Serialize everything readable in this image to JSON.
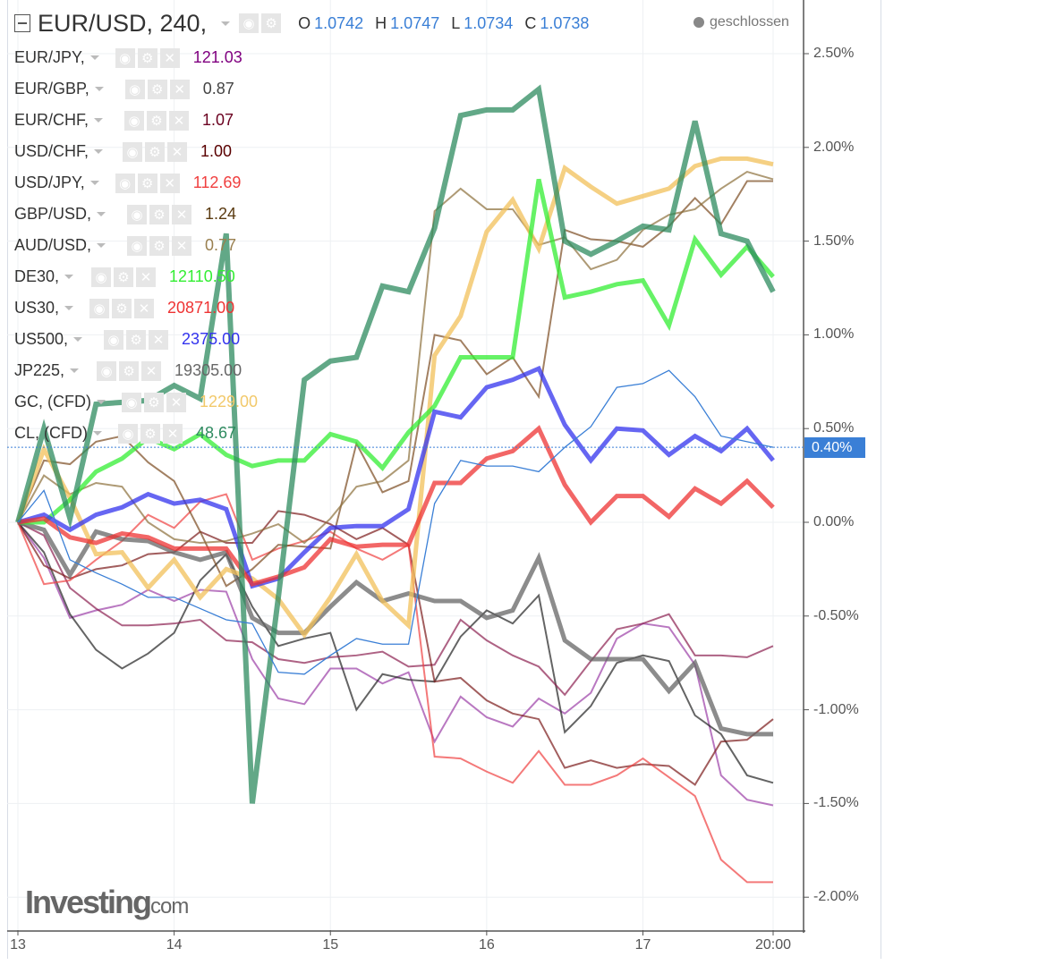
{
  "header": {
    "symbol": "EUR/USD, 240,",
    "o_label": "O",
    "o": "1.0742",
    "h_label": "H",
    "h": "1.0747",
    "l_label": "L",
    "l": "1.0734",
    "c_label": "C",
    "c": "1.0738",
    "status": "geschlossen"
  },
  "watermark": {
    "brand": "Investing",
    "suffix": ".com"
  },
  "current_badge": "0.40%",
  "chart_data": {
    "type": "line",
    "title": "EUR/USD, 240",
    "y_ticks": [
      "2.50%",
      "2.00%",
      "1.50%",
      "1.00%",
      "0.50%",
      "0.00%",
      "-0.50%",
      "-1.00%",
      "-1.50%",
      "-2.00%"
    ],
    "y_tick_values": [
      2.5,
      2.0,
      1.5,
      1.0,
      0.5,
      0,
      -0.5,
      -1.0,
      -1.5,
      -2.0
    ],
    "ylim": [
      -2.18,
      2.79
    ],
    "x_ticks": [
      {
        "label": "13",
        "bar": 0
      },
      {
        "label": "14",
        "bar": 6
      },
      {
        "label": "15",
        "bar": 12
      },
      {
        "label": "16",
        "bar": 18
      },
      {
        "label": "17",
        "bar": 24
      },
      {
        "label": "20:00",
        "bar": 29
      }
    ],
    "xlim": [
      0,
      29
    ],
    "grid": true,
    "units": "percent change",
    "main_series": {
      "name": "EUR/USD",
      "color": "#3a7fd6",
      "current": 0.4,
      "values": [
        0,
        0.17,
        -0.2,
        -0.27,
        -0.33,
        -0.4,
        -0.4,
        -0.46,
        -0.52,
        -0.54,
        -0.8,
        -0.81,
        -0.71,
        -0.62,
        -0.65,
        -0.65,
        0.1,
        0.33,
        0.3,
        0.3,
        0.27,
        0.4,
        0.51,
        0.72,
        0.74,
        0.81,
        0.67,
        0.46,
        0.43,
        0.4
      ]
    },
    "series": [
      {
        "name": "EUR/JPY,",
        "last_value": "121.03",
        "text_color": "#800080",
        "color": "#9b3fa6",
        "width": 2,
        "values": [
          0,
          -0.19,
          -0.51,
          -0.47,
          -0.44,
          -0.36,
          -0.42,
          -0.36,
          -0.37,
          -0.73,
          -0.94,
          -0.97,
          -0.78,
          -0.78,
          -0.86,
          -0.8,
          -1.17,
          -0.93,
          -1.04,
          -1.09,
          -0.94,
          -1.02,
          -0.91,
          -0.62,
          -0.54,
          -0.56,
          -0.76,
          -1.35,
          -1.48,
          -1.51
        ]
      },
      {
        "name": "EUR/GBP,",
        "last_value": "0.87",
        "text_color": "#444444",
        "color": "#222222",
        "width": 2,
        "values": [
          0,
          -0.16,
          -0.49,
          -0.68,
          -0.78,
          -0.7,
          -0.59,
          -0.31,
          -0.17,
          -0.45,
          -0.66,
          -0.62,
          -0.59,
          -1.0,
          -0.81,
          -0.84,
          -0.85,
          -0.61,
          -0.47,
          -0.54,
          -0.39,
          -1.12,
          -0.98,
          -0.75,
          -0.71,
          -0.74,
          -1.03,
          -1.13,
          -1.35,
          -1.39
        ]
      },
      {
        "name": "EUR/CHF,",
        "last_value": "1.07",
        "text_color": "#6b0020",
        "color": "#8b2050",
        "width": 2,
        "values": [
          0,
          -0.07,
          -0.35,
          -0.46,
          -0.55,
          -0.55,
          -0.54,
          -0.52,
          -0.63,
          -0.64,
          -0.73,
          -0.75,
          -0.72,
          -0.71,
          -0.69,
          -0.77,
          -0.76,
          -0.52,
          -0.63,
          -0.71,
          -0.77,
          -0.92,
          -0.74,
          -0.57,
          -0.54,
          -0.49,
          -0.71,
          -0.71,
          -0.72,
          -0.66
        ]
      },
      {
        "name": "USD/CHF,",
        "last_value": "1.00",
        "text_color": "#5a0000",
        "color": "#7a1a1a",
        "width": 2,
        "values": [
          0,
          -0.23,
          -0.3,
          -0.25,
          -0.23,
          -0.17,
          -0.16,
          -0.05,
          -0.11,
          -0.11,
          0.06,
          0.04,
          -0.01,
          -0.09,
          -0.03,
          -0.12,
          -0.85,
          -0.83,
          -0.95,
          -1.02,
          -1.05,
          -1.31,
          -1.27,
          -1.31,
          -1.29,
          -1.3,
          -1.4,
          -1.17,
          -1.16,
          -1.05
        ]
      },
      {
        "name": "USD/JPY,",
        "last_value": "112.69",
        "text_color": "#f04040",
        "color": "#f04040",
        "width": 2,
        "values": [
          0,
          -0.33,
          -0.31,
          -0.2,
          -0.1,
          0.04,
          -0.03,
          0.11,
          0.15,
          -0.2,
          -0.14,
          -0.1,
          -0.05,
          -0.14,
          -0.2,
          -0.12,
          -1.25,
          -1.26,
          -1.33,
          -1.39,
          -1.22,
          -1.4,
          -1.4,
          -1.35,
          -1.26,
          -1.36,
          -1.46,
          -1.8,
          -1.92,
          -1.92
        ]
      },
      {
        "name": "GBP/USD,",
        "last_value": "1.24",
        "text_color": "#5a3a10",
        "color": "#7a4a20",
        "width": 2,
        "values": [
          0,
          0.33,
          0.31,
          0.43,
          0.46,
          0.32,
          0.22,
          -0.05,
          -0.34,
          -0.25,
          -0.12,
          -0.13,
          -0.14,
          0.42,
          0.16,
          0.22,
          1.0,
          0.97,
          0.79,
          0.88,
          0.67,
          1.56,
          1.51,
          1.5,
          1.47,
          1.58,
          1.73,
          1.59,
          1.82,
          1.82
        ]
      },
      {
        "name": "AUD/USD,",
        "last_value": "0.77",
        "text_color": "#9a8050",
        "color": "#8b6f3a",
        "width": 2,
        "values": [
          0,
          0.25,
          0.15,
          0.21,
          0.19,
          0.0,
          -0.09,
          -0.11,
          -0.1,
          -0.06,
          -0.01,
          -0.11,
          0.02,
          0.19,
          0.22,
          0.33,
          1.66,
          1.78,
          1.67,
          1.67,
          1.48,
          1.52,
          1.35,
          1.4,
          1.56,
          1.64,
          1.67,
          1.78,
          1.87,
          1.83
        ]
      },
      {
        "name": "DE30,",
        "last_value": "12110.50",
        "text_color": "#33ee33",
        "color": "#33ee33",
        "width": 5,
        "values": [
          0,
          0,
          0.12,
          0.27,
          0.34,
          0.45,
          0.39,
          0.47,
          0.36,
          0.3,
          0.33,
          0.33,
          0.47,
          0.43,
          0.29,
          0.48,
          0.62,
          0.88,
          0.88,
          0.88,
          1.83,
          1.2,
          1.23,
          1.27,
          1.29,
          1.05,
          1.51,
          1.32,
          1.47,
          1.31
        ]
      },
      {
        "name": "US30,",
        "last_value": "20871.00",
        "text_color": "#ee3333",
        "color": "#ee3333",
        "width": 5,
        "values": [
          0,
          0.02,
          -0.08,
          -0.11,
          -0.06,
          -0.08,
          -0.14,
          -0.14,
          -0.14,
          -0.33,
          -0.29,
          -0.24,
          -0.09,
          -0.13,
          -0.12,
          -0.12,
          0.21,
          0.21,
          0.34,
          0.38,
          0.5,
          0.2,
          0.0,
          0.14,
          0.14,
          0.03,
          0.18,
          0.1,
          0.22,
          0.08
        ]
      },
      {
        "name": "US500,",
        "last_value": "2375.00",
        "text_color": "#3333ee",
        "color": "#3333ee",
        "width": 5,
        "values": [
          0,
          0.04,
          -0.04,
          0.04,
          0.08,
          0.15,
          0.1,
          0.12,
          0.07,
          -0.34,
          -0.3,
          -0.16,
          -0.03,
          -0.02,
          -0.02,
          0.07,
          0.59,
          0.56,
          0.72,
          0.76,
          0.82,
          0.52,
          0.33,
          0.5,
          0.49,
          0.36,
          0.46,
          0.38,
          0.5,
          0.33
        ]
      },
      {
        "name": "JP225,",
        "last_value": "19305.00",
        "text_color": "#666666",
        "color": "#666666",
        "width": 5,
        "values": [
          0,
          -0.04,
          -0.28,
          -0.05,
          -0.09,
          -0.1,
          -0.16,
          -0.2,
          -0.16,
          -0.51,
          -0.59,
          -0.59,
          -0.45,
          -0.32,
          -0.42,
          -0.38,
          -0.42,
          -0.42,
          -0.51,
          -0.47,
          -0.19,
          -0.63,
          -0.73,
          -0.73,
          -0.73,
          -0.9,
          -0.75,
          -1.1,
          -1.13,
          -1.13
        ]
      },
      {
        "name": "GC, (CFD)",
        "last_value": "1229.00",
        "text_color": "#f2c96b",
        "color": "#f2c05a",
        "width": 5,
        "values": [
          0,
          0.39,
          0.13,
          -0.17,
          -0.16,
          -0.35,
          -0.2,
          -0.4,
          -0.25,
          -0.3,
          -0.41,
          -0.6,
          -0.4,
          -0.17,
          -0.42,
          -0.55,
          0.89,
          1.1,
          1.55,
          1.72,
          1.46,
          1.89,
          1.79,
          1.7,
          1.74,
          1.78,
          1.9,
          1.94,
          1.94,
          1.91
        ]
      },
      {
        "name": "CL, (CFD)",
        "last_value": "48.67",
        "text_color": "#2e8b5f",
        "color": "#2e8b5f",
        "width": 6,
        "values": [
          0,
          0.5,
          0.02,
          0.63,
          0.64,
          0.65,
          0.73,
          0.66,
          1.54,
          -1.5,
          -0.4,
          0.76,
          0.86,
          0.88,
          1.26,
          1.23,
          1.57,
          2.17,
          2.2,
          2.2,
          2.31,
          1.5,
          1.43,
          1.5,
          1.58,
          1.56,
          2.14,
          1.54,
          1.5,
          1.23
        ]
      }
    ]
  }
}
